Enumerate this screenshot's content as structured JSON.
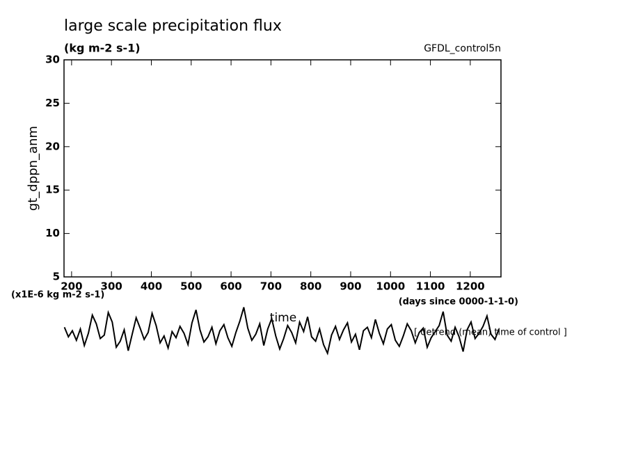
{
  "chart_data": {
    "type": "line",
    "title": "large scale precipitation flux",
    "subtitle": "(kg m-2 s-1)",
    "source": "GFDL_control5n",
    "y_label": "gt_dppn_anm",
    "y_unit": "(x1E-6 kg m-2 s-1)",
    "x_unit": "(days since 0000-1-1-0)",
    "x_label": "time",
    "note": "[ detrend (mean) time of control ]",
    "xlim": [
      181,
      1277
    ],
    "ylim": [
      5,
      30
    ],
    "xticks": [
      200,
      300,
      400,
      500,
      600,
      700,
      800,
      900,
      1000,
      1100,
      1200
    ],
    "yticks": [
      5,
      10,
      15,
      20,
      25,
      30
    ],
    "color": "#000000",
    "x": [
      182,
      192,
      202,
      212,
      222,
      232,
      242,
      252,
      262,
      272,
      282,
      292,
      302,
      312,
      322,
      332,
      342,
      352,
      362,
      372,
      382,
      392,
      402,
      412,
      422,
      432,
      442,
      452,
      462,
      472,
      482,
      492,
      502,
      512,
      522,
      532,
      542,
      552,
      562,
      572,
      582,
      592,
      602,
      612,
      622,
      632,
      642,
      652,
      662,
      672,
      682,
      692,
      702,
      712,
      722,
      732,
      742,
      752,
      762,
      772,
      782,
      792,
      802,
      812,
      822,
      832,
      842,
      852,
      862,
      872,
      882,
      892,
      902,
      912,
      922,
      932,
      942,
      952,
      962,
      972,
      982,
      992,
      1002,
      1012,
      1022,
      1032,
      1042,
      1052,
      1062,
      1072,
      1082,
      1092,
      1102,
      1112,
      1122,
      1132,
      1142,
      1152,
      1162,
      1172,
      1182,
      1192,
      1202,
      1212,
      1222,
      1232,
      1242,
      1252,
      1262,
      1272
    ],
    "values": [
      -0.8,
      -1.9,
      -1.2,
      -2.3,
      -1.0,
      -2.9,
      -1.5,
      0.6,
      -0.4,
      -2.1,
      -1.7,
      0.9,
      -0.2,
      -3.1,
      -2.4,
      -1.1,
      -3.5,
      -1.6,
      0.3,
      -0.9,
      -2.2,
      -1.4,
      0.8,
      -0.6,
      -2.6,
      -1.8,
      -3.2,
      -1.3,
      -2.0,
      -0.7,
      -1.5,
      -2.8,
      -0.3,
      1.2,
      -1.1,
      -2.5,
      -1.9,
      -0.8,
      -2.7,
      -1.2,
      -0.5,
      -2.0,
      -3.0,
      -1.4,
      -0.1,
      1.5,
      -0.9,
      -2.3,
      -1.6,
      -0.4,
      -2.9,
      -1.0,
      0.2,
      -1.8,
      -3.3,
      -2.1,
      -0.6,
      -1.4,
      -2.6,
      -0.2,
      -1.3,
      0.4,
      -1.9,
      -2.4,
      -1.0,
      -2.8,
      -3.8,
      -1.7,
      -0.7,
      -2.2,
      -1.1,
      -0.3,
      -2.5,
      -1.6,
      -3.4,
      -1.2,
      -0.8,
      -2.0,
      0.1,
      -1.5,
      -2.7,
      -1.0,
      -0.5,
      -2.3,
      -3.0,
      -1.8,
      -0.4,
      -1.2,
      -2.6,
      -1.4,
      -0.9,
      -3.1,
      -2.0,
      -1.3,
      -0.6,
      1.0,
      -1.7,
      -2.4,
      -0.8,
      -1.9,
      -3.6,
      -1.1,
      -0.2,
      -2.1,
      -1.5,
      -0.7,
      0.5,
      -1.6,
      -2.2,
      -1.0
    ]
  }
}
